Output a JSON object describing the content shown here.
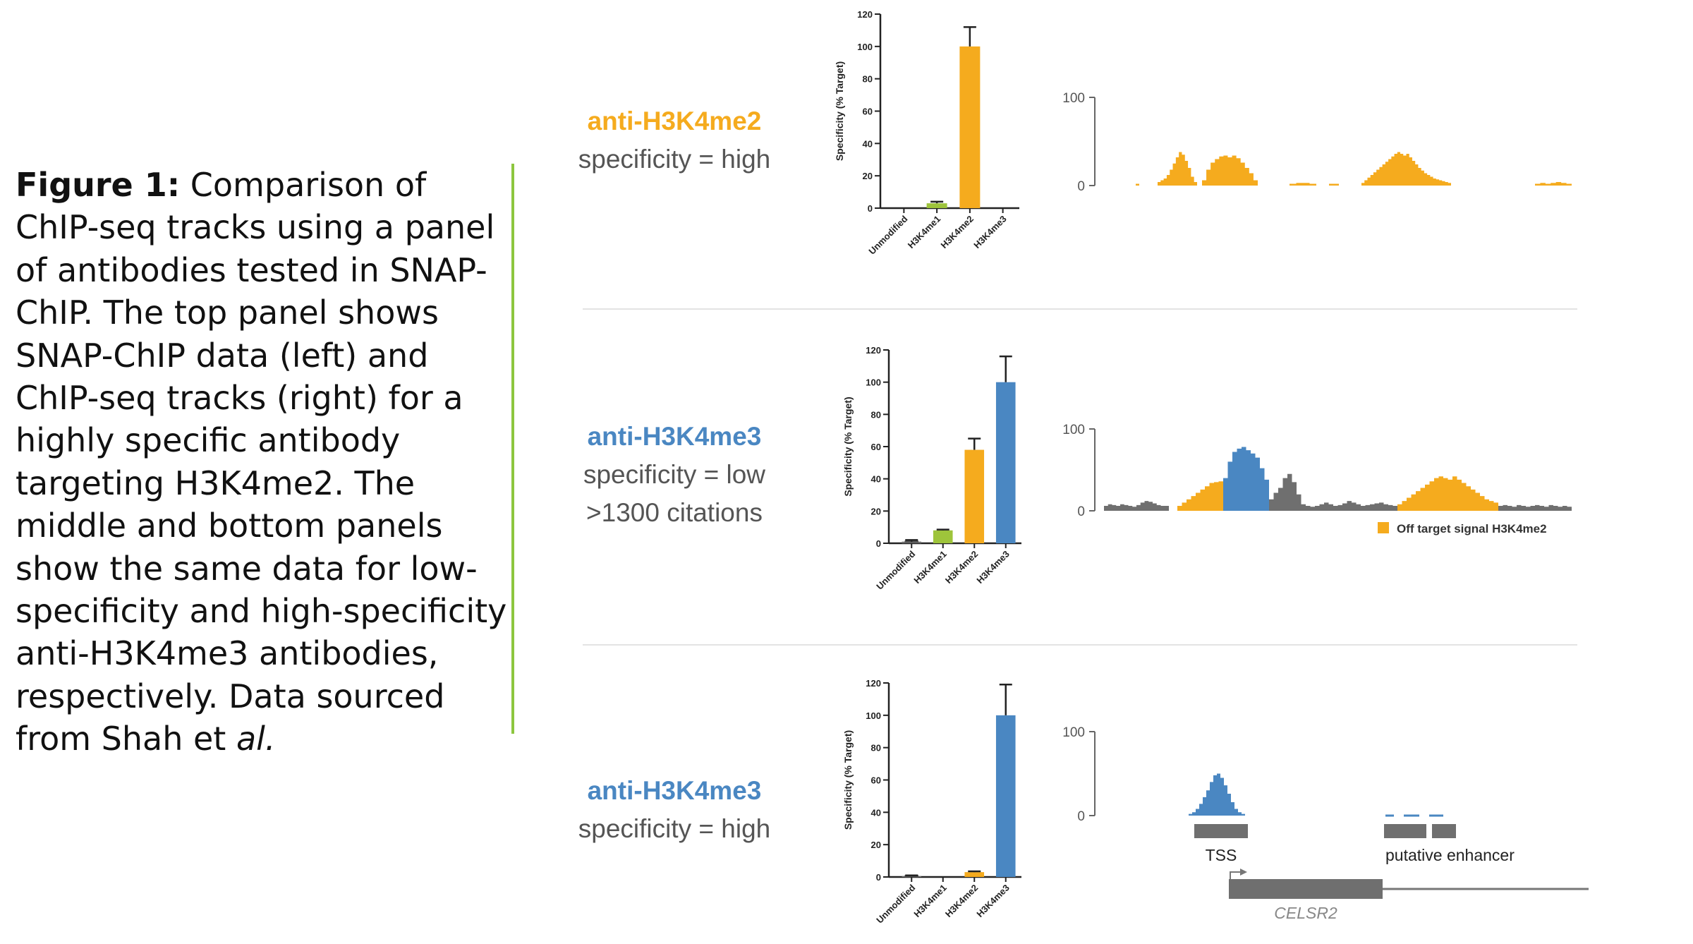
{
  "caption": {
    "bold": "Figure 1:",
    "text": " Comparison of ChIP-seq tracks using a panel of antibodies tested in SNAP-ChIP. The top panel shows SNAP-ChIP data (left) and ChIP-seq tracks (right) for a highly specific antibody targeting H3K4me2. The middle and bottom panels show the same data for low-specificity and high-specificity anti-H3K4me3 antibodies, respectively. Data sourced from Shah et",
    "italic": " al."
  },
  "colors": {
    "accent_line": "#8dc63f",
    "orange": "#f5ab1e",
    "blue": "#4a87c2",
    "green": "#9ec43b",
    "gray": "#6f6f6f"
  },
  "panels": [
    {
      "antibody": "anti-H3K4me2",
      "antibody_color": "#f5ab1e",
      "specificity": "specificity = high",
      "citations": ""
    },
    {
      "antibody": "anti-H3K4me3",
      "antibody_color": "#4a87c2",
      "specificity": "specificity = low",
      "citations": ">1300 citations"
    },
    {
      "antibody": "anti-H3K4me3",
      "antibody_color": "#4a87c2",
      "specificity": "specificity = high",
      "citations": ""
    }
  ],
  "chart_data": [
    {
      "type": "bar",
      "ylabel": "Specificity (% Target)",
      "ylim": [
        0,
        120
      ],
      "yticks": [
        0,
        20,
        40,
        60,
        80,
        100,
        120
      ],
      "categories": [
        "Unmodified",
        "H3K4me1",
        "H3K4me2",
        "H3K4me3"
      ],
      "values": [
        0,
        3,
        100,
        0
      ],
      "errors": [
        0,
        1,
        12,
        0
      ],
      "colors": [
        "#6f6f6f",
        "#9ec43b",
        "#f5ab1e",
        "#4a87c2"
      ]
    },
    {
      "type": "bar",
      "ylabel": "Specificity (% Target)",
      "ylim": [
        0,
        120
      ],
      "yticks": [
        0,
        20,
        40,
        60,
        80,
        100,
        120
      ],
      "categories": [
        "Unmodified",
        "H3K4me1",
        "H3K4me2",
        "H3K4me3"
      ],
      "values": [
        1,
        8,
        58,
        100
      ],
      "errors": [
        1,
        0.5,
        7,
        16
      ],
      "colors": [
        "#6f6f6f",
        "#9ec43b",
        "#f5ab1e",
        "#4a87c2"
      ]
    },
    {
      "type": "bar",
      "ylabel": "Specificity (% Target)",
      "ylim": [
        0,
        120
      ],
      "yticks": [
        0,
        20,
        40,
        60,
        80,
        100,
        120
      ],
      "categories": [
        "Unmodified",
        "H3K4me1",
        "H3K4me2",
        "H3K4me3"
      ],
      "values": [
        0.5,
        0,
        3,
        100
      ],
      "errors": [
        0.5,
        0,
        0.5,
        19
      ],
      "colors": [
        "#6f6f6f",
        "#9ec43b",
        "#f5ab1e",
        "#4a87c2"
      ]
    },
    {
      "type": "area",
      "ylim": [
        0,
        100
      ],
      "yticks": [
        0,
        100
      ],
      "series_color": "#f5ab1e",
      "segments": [
        {
          "color": "#f5ab1e",
          "values": [
            0,
            2
          ]
        },
        {
          "color": "#f5ab1e",
          "values": [
            4,
            6,
            8,
            12,
            18,
            25,
            32,
            38,
            35,
            28,
            20,
            10,
            4
          ]
        },
        {
          "color": "#f5ab1e",
          "values": [
            6,
            18,
            26,
            30,
            33,
            34,
            32,
            34,
            31,
            26,
            20,
            14,
            6
          ]
        },
        {
          "color": "#f5ab1e",
          "values": [
            2,
            3,
            3,
            2
          ]
        },
        {
          "color": "#f5ab1e",
          "values": [
            2,
            2
          ]
        },
        {
          "color": "#f5ab1e",
          "values": [
            3,
            6,
            9,
            12,
            15,
            18,
            21,
            24,
            27,
            30,
            33,
            36,
            38,
            36,
            34,
            36,
            32,
            28,
            24,
            20,
            17,
            14,
            12,
            10,
            8,
            7,
            6,
            5,
            4,
            3
          ]
        },
        {
          "color": "#f5ab1e",
          "values": [
            2,
            3,
            2,
            3,
            4,
            3,
            2
          ]
        }
      ]
    },
    {
      "type": "area",
      "ylim": [
        0,
        100
      ],
      "yticks": [
        0,
        100
      ],
      "legend": {
        "label": "Off target signal H3K4me2",
        "color": "#f5ab1e"
      },
      "segments": [
        {
          "color": "#6f6f6f",
          "values": [
            6,
            8,
            7,
            6,
            8,
            7,
            6,
            5,
            7,
            10,
            12,
            11,
            9,
            7,
            6,
            6
          ]
        },
        {
          "color": "#f5ab1e",
          "values": [
            6,
            10,
            14,
            18,
            22,
            26,
            30,
            34,
            35,
            36
          ]
        },
        {
          "color": "#4a87c2",
          "values": [
            40,
            60,
            72,
            76,
            78,
            74,
            70,
            65,
            52,
            38
          ]
        },
        {
          "color": "#6f6f6f",
          "values": [
            14,
            22,
            28,
            40,
            45,
            35,
            20,
            8,
            6,
            5,
            6,
            8,
            10,
            8,
            6,
            7,
            9,
            12,
            10,
            8,
            6,
            7,
            8,
            9,
            10,
            8,
            7,
            6
          ]
        },
        {
          "color": "#f5ab1e",
          "values": [
            8,
            12,
            16,
            20,
            24,
            28,
            32,
            36,
            40,
            42,
            40,
            38,
            42,
            38,
            34,
            30,
            26,
            22,
            18,
            14,
            12,
            10
          ]
        },
        {
          "color": "#6f6f6f",
          "values": [
            6,
            7,
            6,
            5,
            7,
            6,
            5,
            6,
            7,
            6,
            5,
            7,
            6,
            5,
            6,
            5
          ]
        }
      ]
    },
    {
      "type": "area",
      "ylim": [
        0,
        100
      ],
      "yticks": [
        0,
        100
      ],
      "segments": [
        {
          "color": "#4a87c2",
          "values": [
            0,
            2,
            4,
            8,
            14,
            22,
            30,
            40,
            48,
            50,
            45,
            36,
            26,
            16,
            8,
            4,
            2,
            0
          ]
        }
      ],
      "annotations": {
        "tss": "TSS",
        "enhancer": "putative enhancer",
        "gene": "CELSR2"
      }
    }
  ]
}
